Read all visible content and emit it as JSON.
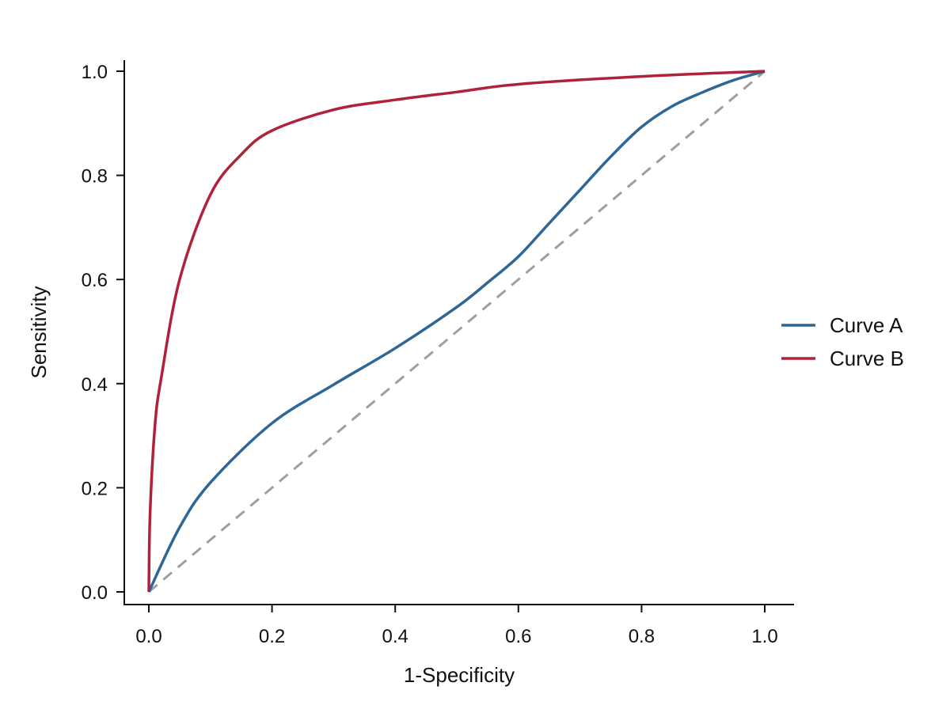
{
  "chart_data": {
    "type": "line",
    "title": "",
    "xlabel": "1-Specificity",
    "ylabel": "Sensitivity",
    "xlim": [
      0,
      1
    ],
    "ylim": [
      0,
      1
    ],
    "xticks": [
      "0.0",
      "0.2",
      "0.4",
      "0.6",
      "0.8",
      "1.0"
    ],
    "yticks": [
      "0.0",
      "0.2",
      "0.4",
      "0.6",
      "0.8",
      "1.0"
    ],
    "grid": false,
    "legend_position": "right",
    "reference_line": {
      "x": [
        0,
        1
      ],
      "y": [
        0,
        1
      ],
      "style": "dashed",
      "color": "#9e9e9e"
    },
    "series": [
      {
        "name": "Curve A",
        "color": "#2e6795",
        "x": [
          0,
          0.05,
          0.1,
          0.2,
          0.3,
          0.4,
          0.5,
          0.55,
          0.6,
          0.65,
          0.7,
          0.75,
          0.8,
          0.85,
          0.9,
          0.95,
          1.0
        ],
        "y": [
          0,
          0.124,
          0.21,
          0.324,
          0.398,
          0.468,
          0.547,
          0.594,
          0.644,
          0.708,
          0.772,
          0.836,
          0.893,
          0.933,
          0.96,
          0.983,
          1.0
        ]
      },
      {
        "name": "Curve B",
        "color": "#b0213a",
        "x": [
          0,
          0.002,
          0.01,
          0.02,
          0.05,
          0.1,
          0.15,
          0.2,
          0.3,
          0.4,
          0.5,
          0.6,
          0.8,
          1.0
        ],
        "y": [
          0,
          0.15,
          0.32,
          0.41,
          0.6,
          0.763,
          0.84,
          0.886,
          0.926,
          0.945,
          0.96,
          0.975,
          0.99,
          1.0
        ]
      }
    ]
  }
}
